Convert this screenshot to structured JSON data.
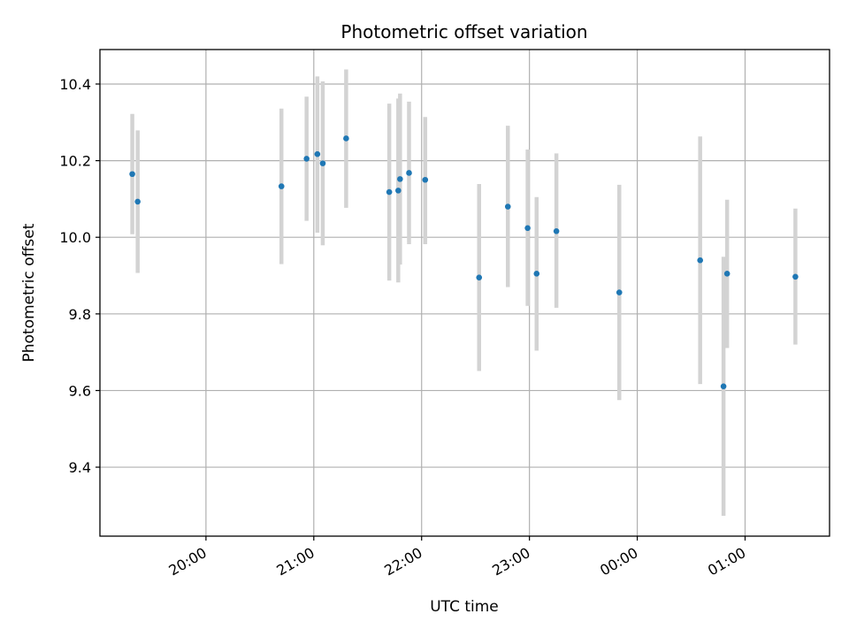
{
  "chart_data": {
    "type": "scatter",
    "title": "Photometric offset variation",
    "xlabel": "UTC time",
    "ylabel": "Photometric offset",
    "xlim": [
      "2023-01-01T19:01:00",
      "2023-01-02T01:47:00"
    ],
    "ylim": [
      9.22,
      10.49
    ],
    "grid": true,
    "x_ticks": [
      {
        "t": "2023-01-01T20:00:00",
        "label": "20:00"
      },
      {
        "t": "2023-01-01T21:00:00",
        "label": "21:00"
      },
      {
        "t": "2023-01-01T22:00:00",
        "label": "22:00"
      },
      {
        "t": "2023-01-01T23:00:00",
        "label": "23:00"
      },
      {
        "t": "2023-01-02T00:00:00",
        "label": "00:00"
      },
      {
        "t": "2023-01-02T01:00:00",
        "label": "01:00"
      }
    ],
    "y_ticks": [
      {
        "v": 9.4,
        "label": "9.4"
      },
      {
        "v": 9.6,
        "label": "9.6"
      },
      {
        "v": 9.8,
        "label": "9.8"
      },
      {
        "v": 10.0,
        "label": "10.0"
      },
      {
        "v": 10.2,
        "label": "10.2"
      },
      {
        "v": 10.4,
        "label": "10.4"
      }
    ],
    "colors": {
      "point": "#1f77b4",
      "errorbar": "#d3d3d3",
      "grid": "#b0b0b0",
      "axes": "#000000"
    },
    "series": [
      {
        "points": [
          {
            "x": "2023-01-01T19:19:00",
            "y": 10.165,
            "lo": 10.008,
            "hi": 10.322
          },
          {
            "x": "2023-01-01T19:22:00",
            "y": 10.093,
            "lo": 9.907,
            "hi": 10.279
          },
          {
            "x": "2023-01-01T20:42:00",
            "y": 10.133,
            "lo": 9.93,
            "hi": 10.336
          },
          {
            "x": "2023-01-01T20:56:00",
            "y": 10.205,
            "lo": 10.043,
            "hi": 10.367
          },
          {
            "x": "2023-01-01T21:02:00",
            "y": 10.217,
            "lo": 10.012,
            "hi": 10.42
          },
          {
            "x": "2023-01-01T21:05:00",
            "y": 10.193,
            "lo": 9.979,
            "hi": 10.407
          },
          {
            "x": "2023-01-01T21:18:00",
            "y": 10.258,
            "lo": 10.077,
            "hi": 10.438
          },
          {
            "x": "2023-01-01T21:42:00",
            "y": 10.118,
            "lo": 9.887,
            "hi": 10.349
          },
          {
            "x": "2023-01-01T21:47:00",
            "y": 10.122,
            "lo": 9.882,
            "hi": 10.362
          },
          {
            "x": "2023-01-01T21:48:00",
            "y": 10.152,
            "lo": 9.929,
            "hi": 10.375
          },
          {
            "x": "2023-01-01T21:53:00",
            "y": 10.168,
            "lo": 9.982,
            "hi": 10.354
          },
          {
            "x": "2023-01-01T22:02:00",
            "y": 10.15,
            "lo": 9.982,
            "hi": 10.314
          },
          {
            "x": "2023-01-01T22:32:00",
            "y": 9.895,
            "lo": 9.651,
            "hi": 10.139
          },
          {
            "x": "2023-01-01T22:48:00",
            "y": 10.08,
            "lo": 9.87,
            "hi": 10.291
          },
          {
            "x": "2023-01-01T22:59:00",
            "y": 10.024,
            "lo": 9.821,
            "hi": 10.229
          },
          {
            "x": "2023-01-01T23:04:00",
            "y": 9.905,
            "lo": 9.704,
            "hi": 10.105
          },
          {
            "x": "2023-01-01T23:15:00",
            "y": 10.016,
            "lo": 9.816,
            "hi": 10.219
          },
          {
            "x": "2023-01-01T23:50:00",
            "y": 9.856,
            "lo": 9.575,
            "hi": 10.137
          },
          {
            "x": "2023-01-02T00:35:00",
            "y": 9.94,
            "lo": 9.617,
            "hi": 10.263
          },
          {
            "x": "2023-01-02T00:48:00",
            "y": 9.611,
            "lo": 9.273,
            "hi": 9.949
          },
          {
            "x": "2023-01-02T00:50:00",
            "y": 9.905,
            "lo": 9.711,
            "hi": 10.098
          },
          {
            "x": "2023-01-02T01:28:00",
            "y": 9.897,
            "lo": 9.72,
            "hi": 10.075
          }
        ]
      }
    ]
  }
}
